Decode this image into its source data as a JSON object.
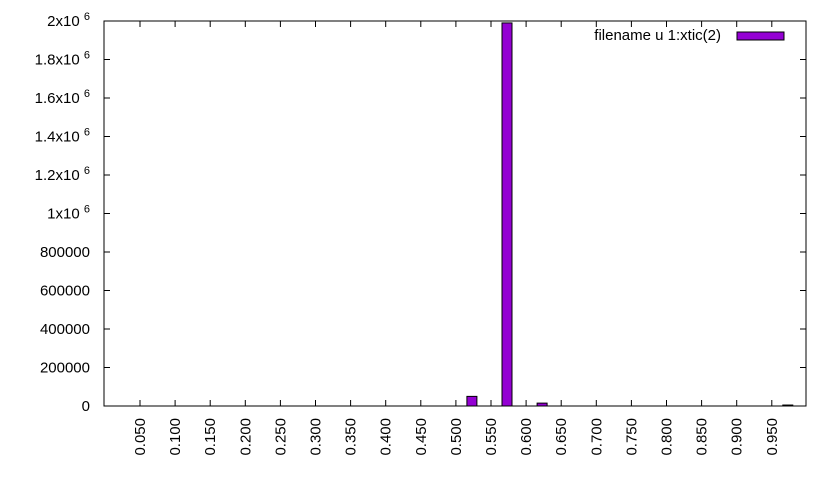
{
  "chart_data": {
    "type": "bar",
    "categories": [
      "0.050",
      "0.100",
      "0.150",
      "0.200",
      "0.250",
      "0.300",
      "0.350",
      "0.400",
      "0.450",
      "0.500",
      "0.550",
      "0.600",
      "0.650",
      "0.700",
      "0.750",
      "0.800",
      "0.850",
      "0.900",
      "0.950"
    ],
    "series": [
      {
        "name": "filename u 1:xtic(2)",
        "color": "#9400d3",
        "values": [
          0,
          0,
          0,
          0,
          0,
          0,
          0,
          0,
          0,
          50000,
          1990000,
          15000,
          0,
          0,
          0,
          0,
          0,
          0,
          5000
        ]
      }
    ],
    "title": "",
    "xlabel": "",
    "ylabel": "",
    "ylim": [
      0,
      2000000
    ],
    "yticks": [
      {
        "value": 0,
        "label": "0",
        "exp": ""
      },
      {
        "value": 200000,
        "label": "200000",
        "exp": ""
      },
      {
        "value": 400000,
        "label": "400000",
        "exp": ""
      },
      {
        "value": 600000,
        "label": "600000",
        "exp": ""
      },
      {
        "value": 800000,
        "label": "800000",
        "exp": ""
      },
      {
        "value": 1000000,
        "label": "1x10",
        "exp": "6"
      },
      {
        "value": 1200000,
        "label": "1.2x10",
        "exp": "6"
      },
      {
        "value": 1400000,
        "label": "1.4x10",
        "exp": "6"
      },
      {
        "value": 1600000,
        "label": "1.6x10",
        "exp": "6"
      },
      {
        "value": 1800000,
        "label": "1.8x10",
        "exp": "6"
      },
      {
        "value": 2000000,
        "label": "2x10",
        "exp": "6"
      }
    ],
    "grid": false,
    "legend_position": "top-right",
    "x_tick_rotation": "vertical"
  }
}
